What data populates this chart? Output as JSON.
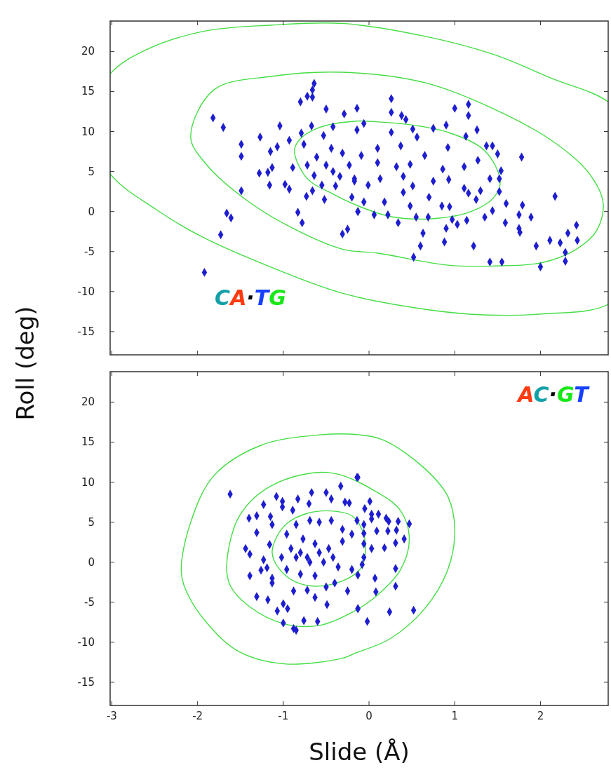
{
  "chart_data": [
    {
      "type": "scatter",
      "ylabel": "Roll (deg)",
      "annotations": [
        "CA·TG"
      ],
      "xlim": [
        -3.02,
        2.79
      ],
      "xticks": [
        -3,
        -2,
        -1,
        0,
        1,
        2
      ],
      "ylim": [
        -17.9,
        23.8
      ],
      "yticks": [
        -15,
        -10,
        -5,
        0,
        5,
        10,
        15,
        20
      ],
      "tick_labels": "y",
      "grid": false,
      "series": [
        {
          "type": "scatter",
          "marker": "diamond",
          "color": "#1e1ecf",
          "x": [
            -0.64,
            -0.66,
            -0.72,
            -0.8,
            -0.66,
            -1.82,
            -1.7,
            -1.49,
            -1.49,
            -1.27,
            -1.04,
            -1.15,
            -1.07,
            -0.93,
            -1.28,
            -1.18,
            -1.13,
            -1.49,
            -1.16,
            -0.98,
            -0.93,
            -0.89,
            -0.83,
            -0.78,
            -1.66,
            -1.61,
            -1.73,
            -1.92,
            -0.31,
            -0.25,
            -0.73,
            -0.66,
            -0.52,
            -0.55,
            -0.39,
            -0.64,
            -0.5,
            -0.42,
            -0.72,
            -0.61,
            -0.76,
            -0.53,
            -0.42,
            -0.5,
            -0.29,
            -0.14,
            -0.79,
            -0.67,
            -0.44,
            -0.31,
            -0.23,
            -0.17,
            -0.2,
            -0.13,
            -0.34,
            0.26,
            0.26,
            0.38,
            0.43,
            1.0,
            1.16,
            1.16,
            1.26,
            -0.14,
            -0.06,
            0.26,
            0.51,
            0.75,
            0.9,
            0.56,
            0.1,
            0.37,
            0.65,
            0.92,
            1.13,
            1.37,
            1.44,
            1.5,
            1.78,
            -0.09,
            0.1,
            0.32,
            0.48,
            0.86,
            1.11,
            1.27,
            1.54,
            1.52,
            -0.17,
            -0.01,
            0.13,
            0.4,
            0.51,
            0.75,
            0.93,
            1.11,
            1.3,
            1.41,
            0.4,
            0.7,
            1.16,
            1.25,
            1.52,
            -0.06,
            0.18,
            0.48,
            0.85,
            0.94,
            -0.13,
            0.06,
            0.22,
            0.55,
            0.69,
            0.34,
            0.97,
            1.03,
            1.14,
            1.35,
            1.44,
            1.59,
            1.6,
            1.79,
            1.75,
            1.89,
            2.17,
            0.9,
            0.63,
            0.6,
            0.88,
            1.22,
            1.75,
            1.76,
            1.95,
            2.11,
            2.23,
            2.29,
            2.29,
            2.42,
            2.43,
            2.32,
            1.41,
            1.55,
            2.0,
            0.52
          ],
          "values": [
            16.0,
            15.2,
            14.4,
            13.7,
            14.3,
            11.7,
            10.5,
            8.4,
            6.9,
            9.3,
            10.7,
            7.5,
            8.1,
            8.9,
            4.8,
            4.9,
            5.5,
            2.6,
            3.3,
            3.4,
            2.8,
            5.5,
            -0.1,
            -1.4,
            -0.2,
            -0.8,
            -2.9,
            -7.6,
            -2.8,
            -2.2,
            1.9,
            2.6,
            1.5,
            3.3,
            3.2,
            4.5,
            5.8,
            5.0,
            5.8,
            6.8,
            8.4,
            9.5,
            10.6,
            12.8,
            12.2,
            12.9,
            9.8,
            10.7,
            7.9,
            7.3,
            5.8,
            3.8,
            1.8,
            0.0,
            4.4,
            14.1,
            12.4,
            12.0,
            11.5,
            12.9,
            13.4,
            12.0,
            10.2,
            10.2,
            11.0,
            9.9,
            10.3,
            10.4,
            10.8,
            9.3,
            7.9,
            8.2,
            7.0,
            8.0,
            9.4,
            8.2,
            8.2,
            7.2,
            6.8,
            7.0,
            6.1,
            5.6,
            5.9,
            5.3,
            5.6,
            6.4,
            5.1,
            4.1,
            4.1,
            3.3,
            4.1,
            4.4,
            3.2,
            3.8,
            4.0,
            2.9,
            2.6,
            4.1,
            2.4,
            1.8,
            2.3,
            1.5,
            2.5,
            1.2,
            1.2,
            0.7,
            0.7,
            0.6,
            0.0,
            -0.4,
            -0.4,
            -0.7,
            -0.7,
            -1.4,
            -1.0,
            -1.6,
            -1.1,
            -0.7,
            0.1,
            -1.4,
            1.0,
            0.8,
            -0.4,
            -0.7,
            1.9,
            -2.1,
            -2.7,
            -4.3,
            -3.8,
            -4.3,
            -2.1,
            -2.6,
            -4.3,
            -3.6,
            -3.9,
            -5.1,
            -6.2,
            -1.7,
            -3.6,
            -2.7,
            -6.3,
            -6.3,
            -6.9,
            -5.7
          ]
        }
      ]
    },
    {
      "type": "scatter",
      "xlabel": "Slide (Å)",
      "annotations": [
        "AC·GT"
      ],
      "xlim": [
        -3.02,
        2.79
      ],
      "xticks": [
        -3,
        -2,
        -1,
        0,
        1,
        2
      ],
      "ylim": [
        -17.9,
        23.8
      ],
      "yticks": [
        -15,
        -10,
        -5,
        0,
        5,
        10,
        15,
        20
      ],
      "grid": false,
      "series": [
        {
          "type": "scatter",
          "marker": "diamond",
          "color": "#1e1ecf",
          "x": [
            -1.62,
            -1.08,
            -1.01,
            -1.23,
            -1.4,
            -1.31,
            -1.15,
            -1.13,
            -1.31,
            -1.01,
            -0.89,
            -0.83,
            -0.67,
            -0.5,
            -0.33,
            -0.14,
            -0.28,
            -0.44,
            -0.7,
            -1.44,
            -1.39,
            -1.16,
            -1.23,
            -1.39,
            -1.26,
            -1.19,
            -1.13,
            -1.13,
            -1.31,
            -1.18,
            -1.07,
            -1.0,
            -0.88,
            -0.85,
            -0.76,
            -0.6,
            -0.49,
            -0.95,
            -1.0,
            -0.88,
            -0.72,
            -0.63,
            -0.5,
            -0.25,
            -0.13,
            -0.4,
            -0.96,
            -0.85,
            -0.69,
            -0.58,
            -0.44,
            -0.31,
            -0.2,
            -0.31,
            -0.47,
            -0.63,
            -0.77,
            -0.91,
            -1.02,
            -0.85,
            -0.69,
            -0.53,
            -0.36,
            -0.2,
            -0.96,
            -0.8,
            -0.63,
            -0.72,
            -0.8,
            -0.58,
            -0.42,
            -0.14,
            -0.23,
            -0.13,
            0.01,
            -0.05,
            0.03,
            0.11,
            0.2,
            0.23,
            0.34,
            0.47,
            0.03,
            -0.06,
            0.09,
            0.22,
            0.32,
            -0.06,
            0.41,
            0.31,
            0.18,
            0.03,
            -0.06,
            -0.06,
            -0.08,
            -0.13,
            0.31,
            0.07,
            0.08,
            0.31,
            -0.13,
            -0.02,
            0.24,
            0.52
          ],
          "values": [
            8.5,
            8.2,
            7.6,
            7.2,
            5.5,
            5.8,
            5.7,
            4.7,
            3.7,
            6.9,
            6.5,
            7.9,
            8.7,
            8.7,
            9.5,
            10.6,
            7.5,
            7.9,
            7.3,
            1.7,
            1.0,
            2.2,
            0.3,
            -1.7,
            -1.0,
            -0.7,
            -2.0,
            -2.6,
            -4.3,
            -4.7,
            -6.1,
            -7.6,
            -8.3,
            -8.5,
            -7.3,
            -7.4,
            -5.3,
            -5.8,
            -5.2,
            -3.6,
            -3.5,
            -4.4,
            -3.1,
            -3.6,
            -5.8,
            -2.6,
            3.5,
            4.7,
            5.2,
            5.0,
            5.2,
            4.1,
            3.5,
            2.6,
            1.7,
            2.3,
            2.9,
            1.7,
            0.6,
            0.6,
            0.0,
            0.0,
            -0.6,
            -0.9,
            -0.9,
            -1.5,
            -1.7,
            0.6,
            1.2,
            1.2,
            0.6,
            5.2,
            7.4,
            10.6,
            7.6,
            6.7,
            6.0,
            6.0,
            5.5,
            5.1,
            5.1,
            4.8,
            5.4,
            4.7,
            3.9,
            3.9,
            4.0,
            3.6,
            2.9,
            2.4,
            1.8,
            1.7,
            2.3,
            0.6,
            -0.3,
            -1.6,
            -0.8,
            -2.0,
            -3.7,
            -3.0,
            -5.8,
            -7.4,
            -6.2,
            -6.0
          ]
        }
      ]
    }
  ]
}
